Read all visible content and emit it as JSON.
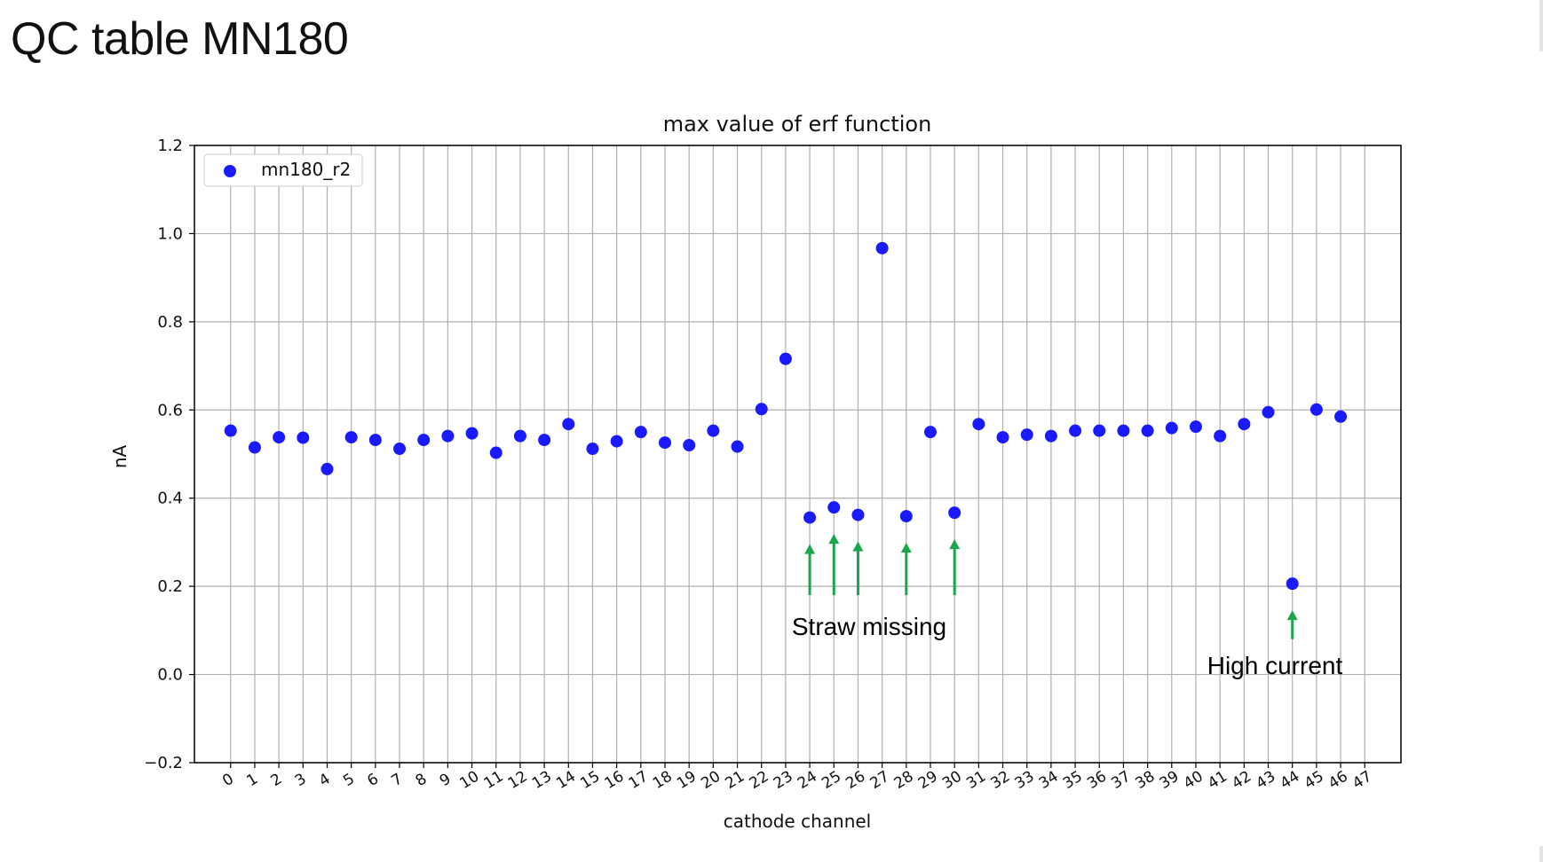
{
  "slide": {
    "title": "QC table MN180"
  },
  "chart_data": {
    "type": "scatter",
    "title": "max value of erf function",
    "xlabel": "cathode channel",
    "ylabel": "nA",
    "xlim": [
      -1.5,
      48.5
    ],
    "ylim": [
      -0.2,
      1.2
    ],
    "xticks": [
      0,
      1,
      2,
      3,
      4,
      5,
      6,
      7,
      8,
      9,
      10,
      11,
      12,
      13,
      14,
      15,
      16,
      17,
      18,
      19,
      20,
      21,
      22,
      23,
      24,
      25,
      26,
      27,
      28,
      29,
      30,
      31,
      32,
      33,
      34,
      35,
      36,
      37,
      38,
      39,
      40,
      41,
      42,
      43,
      44,
      45,
      46,
      47
    ],
    "yticks": [
      -0.2,
      0.0,
      0.2,
      0.4,
      0.6,
      0.8,
      1.0,
      1.2
    ],
    "ytick_labels": [
      "−0.2",
      "0.0",
      "0.2",
      "0.4",
      "0.6",
      "0.8",
      "1.0",
      "1.2"
    ],
    "grid": true,
    "legend_position": "top-left",
    "series": [
      {
        "name": "mn180_r2",
        "color": "#1a1aff",
        "x": [
          0,
          1,
          2,
          3,
          4,
          5,
          6,
          7,
          8,
          9,
          10,
          11,
          12,
          13,
          14,
          15,
          16,
          17,
          18,
          19,
          20,
          21,
          22,
          23,
          24,
          25,
          26,
          27,
          28,
          29,
          30,
          31,
          32,
          33,
          34,
          35,
          36,
          37,
          38,
          39,
          40,
          41,
          42,
          43,
          44,
          45,
          46
        ],
        "y": [
          0.553,
          0.515,
          0.538,
          0.537,
          0.466,
          0.538,
          0.532,
          0.512,
          0.532,
          0.541,
          0.547,
          0.503,
          0.541,
          0.532,
          0.568,
          0.512,
          0.529,
          0.55,
          0.526,
          0.52,
          0.553,
          0.517,
          0.602,
          0.716,
          0.356,
          0.379,
          0.362,
          0.967,
          0.359,
          0.55,
          0.367,
          0.568,
          0.538,
          0.544,
          0.541,
          0.553,
          0.553,
          0.553,
          0.553,
          0.559,
          0.562,
          0.541,
          0.568,
          0.595,
          0.206,
          0.601,
          0.585
        ]
      }
    ],
    "annotations": [
      {
        "text": "Straw missing",
        "arrow_x": [
          24,
          25,
          26,
          28,
          30
        ],
        "arrow_color": "#1aa64b"
      },
      {
        "text": "High current",
        "arrow_x": [
          44
        ],
        "arrow_color": "#1aa64b"
      }
    ]
  }
}
